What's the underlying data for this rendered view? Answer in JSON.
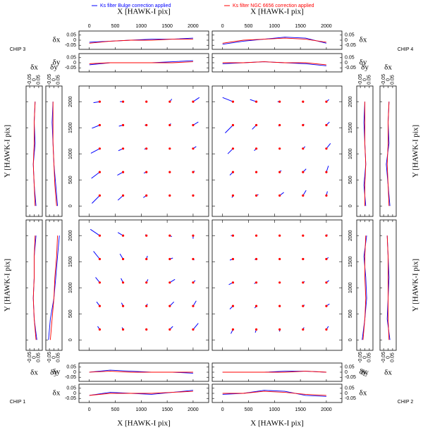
{
  "chart_data": {
    "type": "quiver",
    "series": [
      {
        "name": "Ks filter Bulge correction applied",
        "color": "#0000ff"
      },
      {
        "name": "Ks filter NGC 6656 correction applied",
        "color": "#ff0000"
      }
    ],
    "xlabel": "X [HAWK-I pix]",
    "ylabel": "Y [HAWK-I pix]",
    "xlim": [
      -200,
      2300
    ],
    "ylim": [
      -200,
      2300
    ],
    "xticks": [
      0,
      500,
      1000,
      1500,
      2000
    ],
    "yticks": [
      0,
      500,
      1000,
      1500,
      2000
    ],
    "residual_lim": [
      -0.09,
      0.09
    ],
    "residual_ticks": [
      -0.05,
      0,
      0.05
    ],
    "residual_labels": {
      "dx": "δx",
      "dy": "δy"
    },
    "positions": [
      200,
      650,
      1100,
      1550,
      2000
    ],
    "profile_positions": [
      0,
      400,
      800,
      1200,
      1600,
      2000
    ],
    "chips": [
      {
        "label": "CHIP 3",
        "u": [
          [
            -150,
            -100,
            -60,
            -20,
            20
          ],
          [
            -160,
            -110,
            -50,
            -10,
            30
          ],
          [
            -170,
            -90,
            -40,
            0,
            60
          ],
          [
            -150,
            -80,
            -30,
            20,
            100
          ],
          [
            -120,
            -60,
            0,
            40,
            120
          ]
        ],
        "v": [
          [
            -150,
            -90,
            -40,
            -10,
            10
          ],
          [
            -120,
            -60,
            -20,
            0,
            20
          ],
          [
            -90,
            -40,
            -10,
            10,
            40
          ],
          [
            -60,
            -20,
            0,
            30,
            60
          ],
          [
            -20,
            0,
            20,
            50,
            80
          ]
        ],
        "profiles": {
          "dx_x": [
            [
              -0.02,
              -0.01,
              0,
              0.01,
              0.01,
              0.02
            ],
            [
              -0.03,
              -0.01,
              0,
              0,
              0.01,
              0.01
            ]
          ],
          "dy_x": [
            [
              -0.02,
              0,
              0,
              0,
              0.01,
              0.02
            ],
            [
              -0.01,
              0,
              0,
              0,
              0,
              0.01
            ]
          ],
          "dx_y": [
            [
              0.02,
              0,
              -0.01,
              0.01,
              0,
              0.01
            ],
            [
              0.01,
              0,
              -0.01,
              0,
              0,
              0.01
            ]
          ],
          "dy_y": [
            [
              0.04,
              0.02,
              0,
              -0.01,
              -0.02,
              -0.01
            ],
            [
              0.03,
              0.01,
              0,
              -0.01,
              -0.01,
              -0.01
            ]
          ]
        }
      },
      {
        "label": "CHIP 4",
        "u": [
          [
            -20,
            40,
            80,
            60,
            20
          ],
          [
            -60,
            -20,
            30,
            60,
            40
          ],
          [
            -100,
            -40,
            0,
            40,
            80
          ],
          [
            -150,
            -80,
            -20,
            20,
            60
          ],
          [
            -200,
            -120,
            -40,
            10,
            50
          ]
        ],
        "v": [
          [
            -40,
            20,
            60,
            100,
            80
          ],
          [
            -60,
            -10,
            30,
            60,
            120
          ],
          [
            -100,
            -40,
            0,
            40,
            100
          ],
          [
            -150,
            -80,
            -20,
            20,
            60
          ],
          [
            80,
            40,
            0,
            -20,
            40
          ]
        ],
        "profiles": {
          "dx_x": [
            [
              -0.04,
              -0.01,
              0.01,
              0.03,
              0.02,
              -0.03
            ],
            [
              -0.03,
              0,
              0.01,
              0.02,
              0.01,
              -0.02
            ]
          ],
          "dy_x": [
            [
              -0.01,
              0,
              0.01,
              0,
              -0.01,
              -0.03
            ],
            [
              0,
              0,
              0.01,
              0,
              0,
              -0.02
            ]
          ],
          "dx_y": [
            [
              0.02,
              0,
              -0.02,
              0.01,
              0,
              0.01
            ],
            [
              0.01,
              0,
              -0.01,
              0,
              0,
              0.01
            ]
          ],
          "dy_y": [
            [
              0.01,
              -0.01,
              0.01,
              0,
              -0.01,
              0
            ],
            [
              0,
              0,
              0.01,
              0,
              0,
              0
            ]
          ]
        }
      },
      {
        "label": "CHIP 1",
        "u": [
          [
            -40,
            -20,
            0,
            60,
            100
          ],
          [
            -60,
            -30,
            20,
            80,
            60
          ],
          [
            -80,
            -40,
            30,
            100,
            40
          ],
          [
            -120,
            -60,
            20,
            60,
            20
          ],
          [
            -180,
            -100,
            -20,
            40,
            0
          ]
        ],
        "v": [
          [
            60,
            40,
            20,
            60,
            120
          ],
          [
            80,
            60,
            40,
            80,
            100
          ],
          [
            100,
            80,
            60,
            60,
            40
          ],
          [
            150,
            100,
            60,
            20,
            -20
          ],
          [
            120,
            60,
            20,
            -20,
            -60
          ]
        ],
        "profiles": {
          "dx_x": [
            [
              -0.02,
              0.01,
              0,
              -0.01,
              0.01,
              0.03
            ],
            [
              -0.02,
              0,
              0,
              0,
              0.01,
              0.02
            ]
          ],
          "dy_x": [
            [
              0,
              0.02,
              0.01,
              0,
              0,
              -0.01
            ],
            [
              0,
              0.01,
              0,
              0,
              0,
              0
            ]
          ],
          "dx_y": [
            [
              0.03,
              0,
              -0.01,
              0,
              0,
              0.02
            ],
            [
              0.02,
              0,
              -0.01,
              0,
              0,
              0.01
            ]
          ],
          "dy_y": [
            [
              -0.06,
              -0.04,
              0,
              0.02,
              0.04,
              0.06
            ],
            [
              -0.04,
              -0.02,
              0,
              0.01,
              0.03,
              0.04
            ]
          ]
        }
      },
      {
        "label": "CHIP 2",
        "u": [
          [
            -40,
            -20,
            0,
            20,
            40
          ],
          [
            -60,
            -30,
            10,
            30,
            60
          ],
          [
            -80,
            -40,
            0,
            30,
            50
          ],
          [
            -60,
            -30,
            -10,
            20,
            40
          ],
          [
            -40,
            -20,
            0,
            10,
            20
          ]
        ],
        "v": [
          [
            -80,
            -60,
            -40,
            40,
            60
          ],
          [
            -60,
            -40,
            -20,
            20,
            40
          ],
          [
            -40,
            -20,
            0,
            20,
            40
          ],
          [
            -20,
            -10,
            0,
            10,
            30
          ],
          [
            0,
            0,
            0,
            10,
            20
          ]
        ],
        "profiles": {
          "dx_x": [
            [
              -0.01,
              0,
              0.03,
              0.02,
              -0.02,
              -0.03
            ],
            [
              0,
              0,
              0.02,
              0.01,
              -0.01,
              -0.02
            ]
          ],
          "dy_x": [
            [
              0,
              0,
              0,
              0.01,
              0.01,
              0
            ],
            [
              0,
              0,
              0,
              0,
              0.01,
              0
            ]
          ],
          "dx_y": [
            [
              0.02,
              -0.01,
              0,
              0.01,
              0,
              -0.01
            ],
            [
              0.01,
              0,
              0,
              0,
              0,
              -0.01
            ]
          ],
          "dy_y": [
            [
              -0.03,
              0,
              0.02,
              0.01,
              -0.01,
              0.02
            ],
            [
              -0.02,
              0,
              0.01,
              0,
              0,
              0.01
            ]
          ]
        }
      }
    ]
  }
}
